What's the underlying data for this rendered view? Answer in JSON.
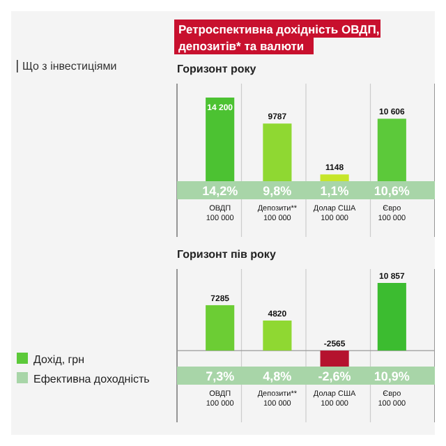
{
  "chart_data": [
    {
      "type": "other",
      "title": "Ретроспективна дохідність ОВДП, депозитів* та валюти",
      "subtitle": "Що з інвестиціями"
    },
    {
      "type": "bar",
      "title": "Горизонт року",
      "categories": [
        "ОВДП 100 000",
        "Депозити** 100 000",
        "Долар США 100 000",
        "Євро 100 000"
      ],
      "series": [
        {
          "colors": [
            "#4cc232",
            "#8fd832",
            "#c6e62a",
            "#5cc93a"
          ],
          "values": [
            14200,
            9787,
            1148,
            10606
          ],
          "value_labels": [
            "14 200",
            "9787",
            "1148",
            "10 606"
          ]
        }
      ],
      "annotations": [
        "14,2%",
        "9,8%",
        "1,1%",
        "10,6%"
      ]
    },
    {
      "type": "bar",
      "title": "Горизонт пів року",
      "categories": [
        "ОВДП 100 000",
        "Депозити** 100 000",
        "Долар США 100 000",
        "Євро 100 000"
      ],
      "legend": "left",
      "series": [
        {
          "name": "Дохід, грн",
          "color": "#5cc93a",
          "colors": [
            "#6ccd34",
            "#8fd832",
            "#b5122e",
            "#3cbc30"
          ],
          "values": [
            7285,
            4820,
            -2565,
            10857
          ],
          "value_labels": [
            "7285",
            "4820",
            "-2565",
            "10 857"
          ]
        }
      ],
      "annotations": [
        "7,3%",
        "4,8%",
        "-2,6%",
        "10,9%",
        "Ефективна доходність"
      ]
    }
  ]
}
